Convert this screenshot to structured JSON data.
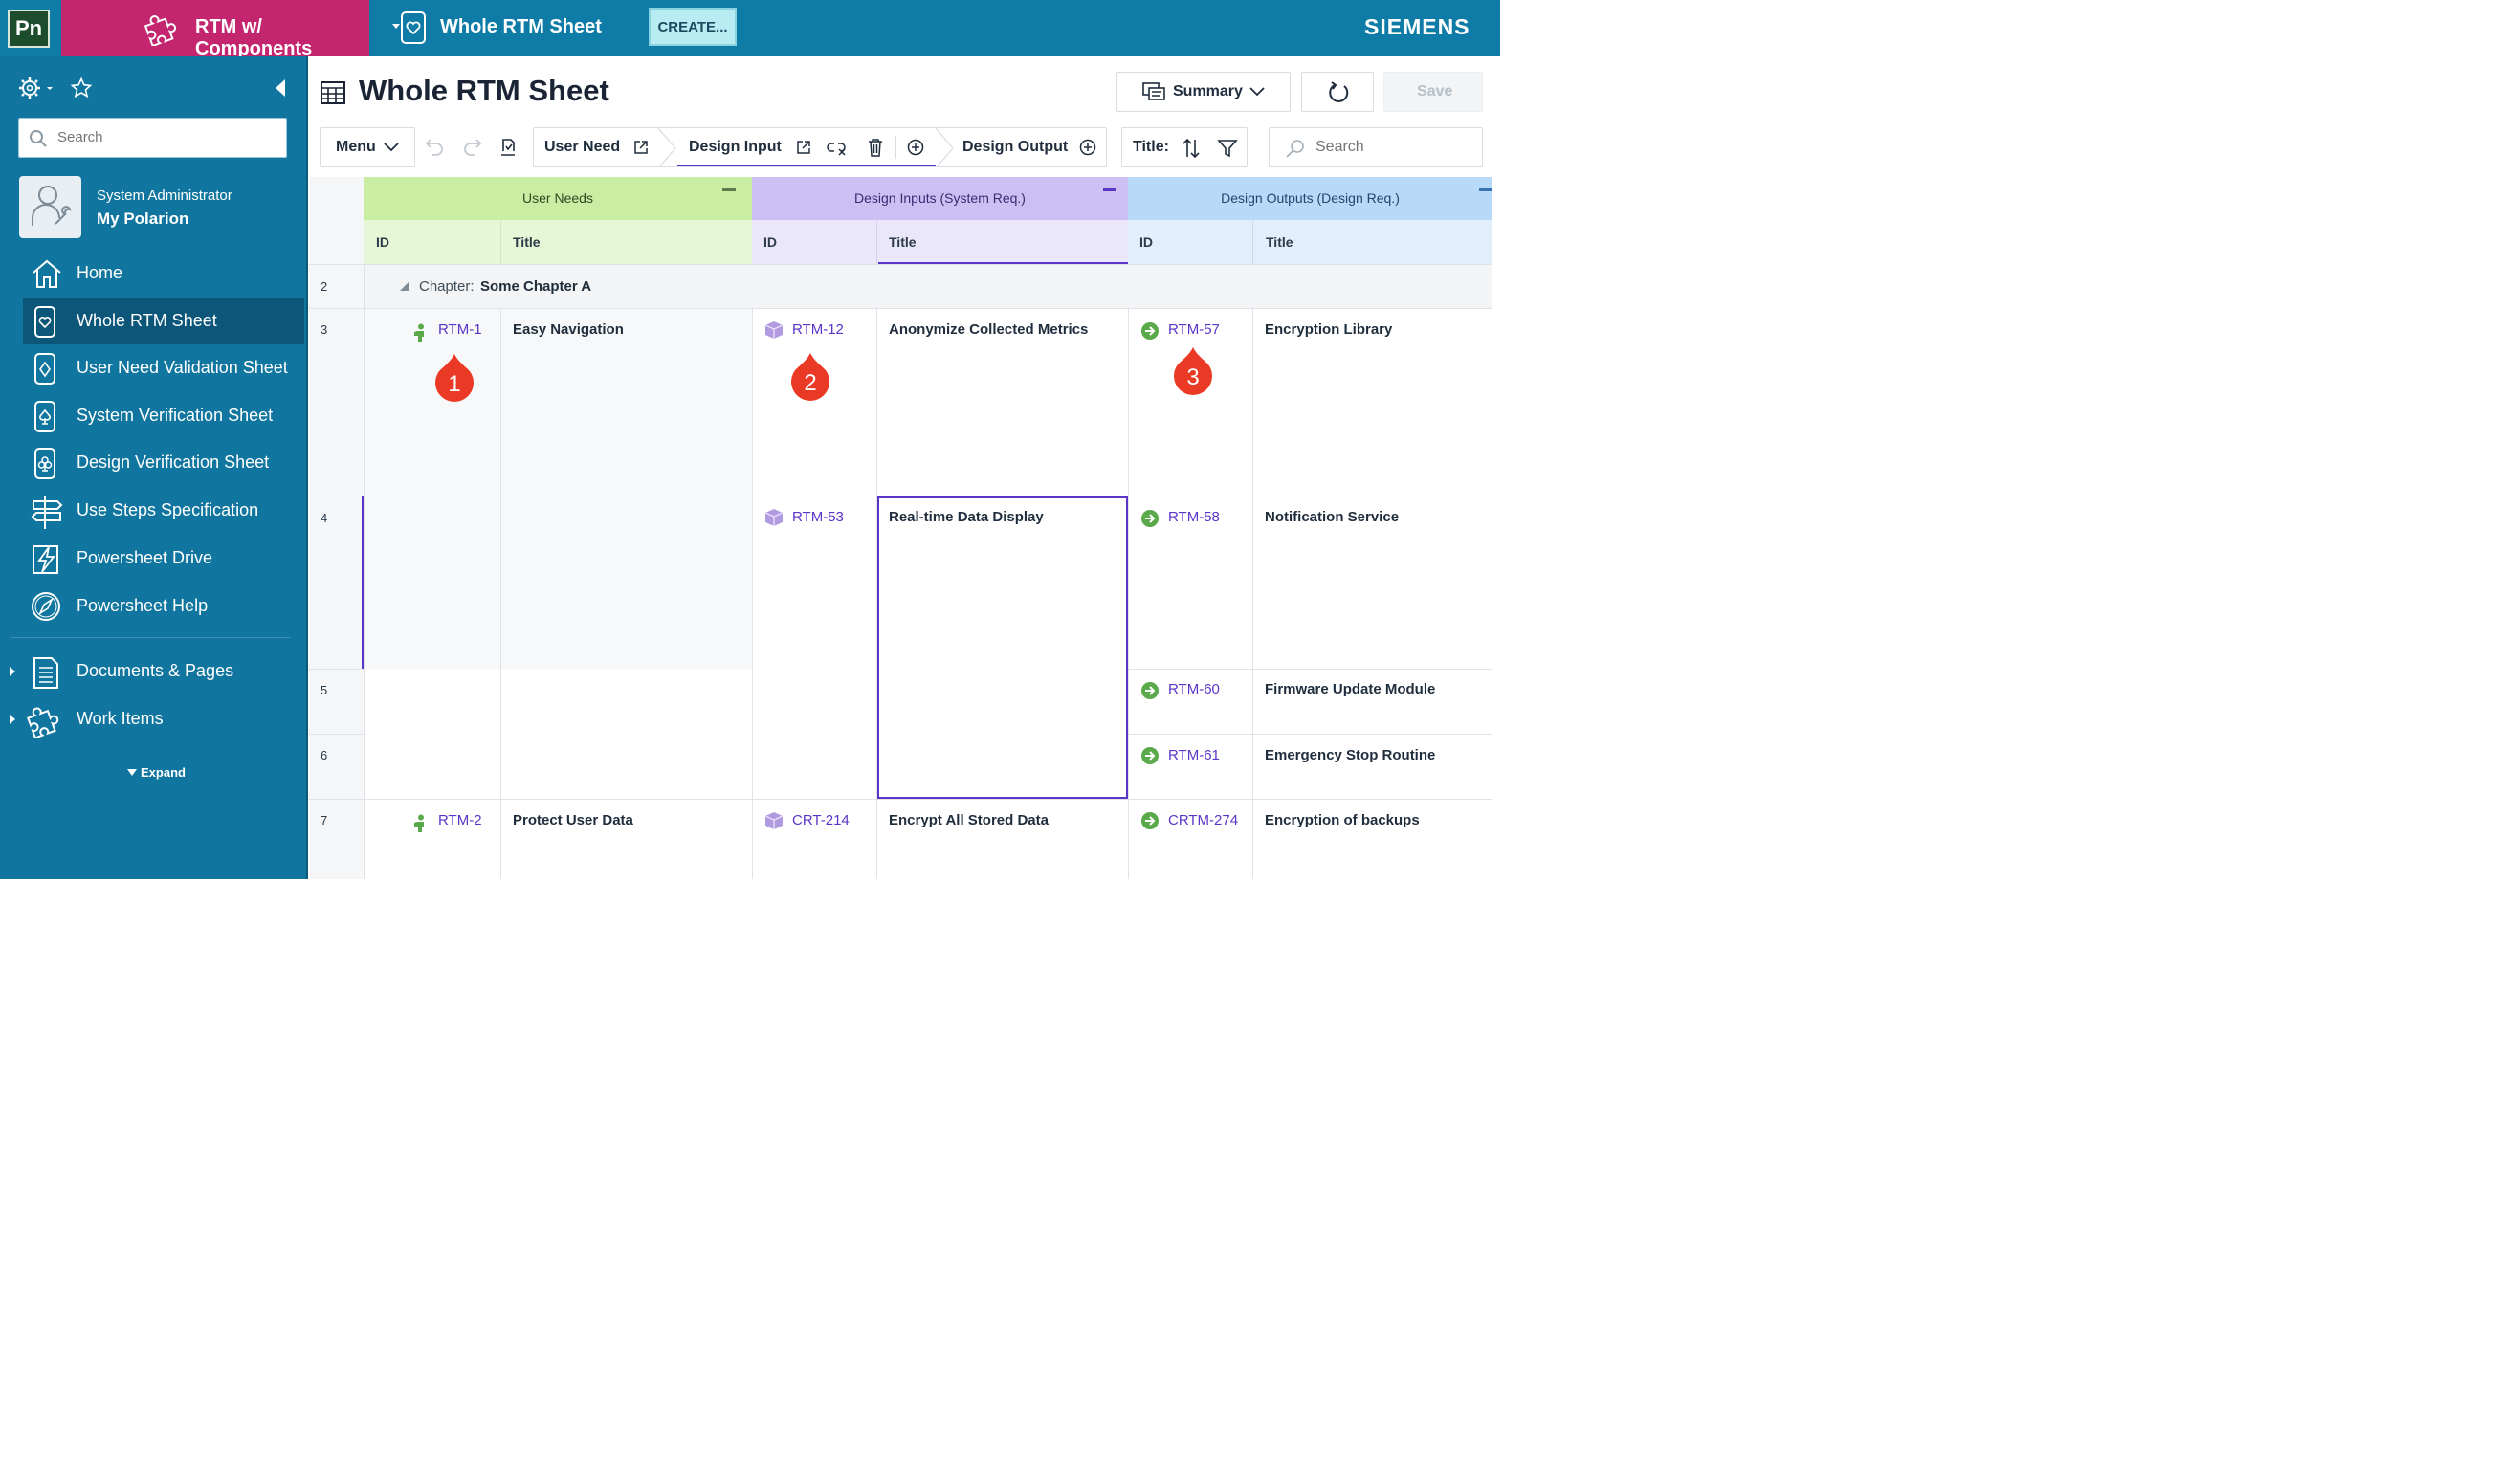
{
  "topbar": {
    "app_logo": "Pn",
    "project": "RTM w/ Components",
    "sheet_title": "Whole RTM Sheet",
    "create_label": "CREATE...",
    "brand": "SIEMENS"
  },
  "sidebar": {
    "search_placeholder": "Search",
    "user_role": "System Administrator",
    "user_home": "My Polarion",
    "nav": [
      {
        "label": "Home",
        "icon": "home-icon"
      },
      {
        "label": "Whole RTM Sheet",
        "icon": "heart-sheet-icon"
      },
      {
        "label": "User Need Validation Sheet",
        "icon": "diamond-sheet-icon"
      },
      {
        "label": "System Verification Sheet",
        "icon": "spade-sheet-icon"
      },
      {
        "label": "Design Verification Sheet",
        "icon": "club-sheet-icon"
      },
      {
        "label": "Use Steps Specification",
        "icon": "signpost-icon"
      },
      {
        "label": "Powersheet Drive",
        "icon": "lightning-icon"
      },
      {
        "label": "Powersheet Help",
        "icon": "compass-icon"
      }
    ],
    "sections": [
      {
        "label": "Documents & Pages",
        "icon": "document-icon"
      },
      {
        "label": "Work Items",
        "icon": "puzzle-icon"
      }
    ],
    "expand_label": "Expand"
  },
  "main": {
    "title": "Whole RTM Sheet",
    "summary_label": "Summary",
    "save_label": "Save",
    "toolbar": {
      "menu_label": "Menu",
      "crumbs": [
        "User Need",
        "Design Input",
        "Design Output"
      ],
      "sort_label": "Title:",
      "search_placeholder": "Search"
    }
  },
  "grid": {
    "groups": [
      {
        "label": "User Needs",
        "color": "#c9eea3"
      },
      {
        "label": "Design Inputs (System Req.)",
        "color": "#cbbff3"
      },
      {
        "label": "Design Outputs (Design Req.)",
        "color": "#b9d9f8"
      }
    ],
    "col_id": "ID",
    "col_title": "Title",
    "chapter_prefix": "Chapter:",
    "chapter_name": "Some Chapter A",
    "row_numbers": [
      "2",
      "3",
      "4",
      "5",
      "6",
      "7"
    ],
    "user_needs": [
      {
        "id": "RTM-1",
        "title": "Easy Navigation"
      },
      {
        "id": "RTM-2",
        "title": "Protect User Data"
      }
    ],
    "design_inputs": [
      {
        "id": "RTM-12",
        "title": "Anonymize Collected Metrics"
      },
      {
        "id": "RTM-53",
        "title": "Real-time Data Display"
      },
      {
        "id": "CRT-214",
        "title": "Encrypt All Stored Data"
      }
    ],
    "design_outputs": [
      {
        "id": "RTM-57",
        "title": "Encryption Library"
      },
      {
        "id": "RTM-58",
        "title": "Notification Service"
      },
      {
        "id": "RTM-60",
        "title": "Firmware Update Module"
      },
      {
        "id": "RTM-61",
        "title": "Emergency Stop Routine"
      },
      {
        "id": "CRTM-274",
        "title": "Encryption of backups"
      }
    ],
    "callouts": [
      "1",
      "2",
      "3"
    ]
  }
}
